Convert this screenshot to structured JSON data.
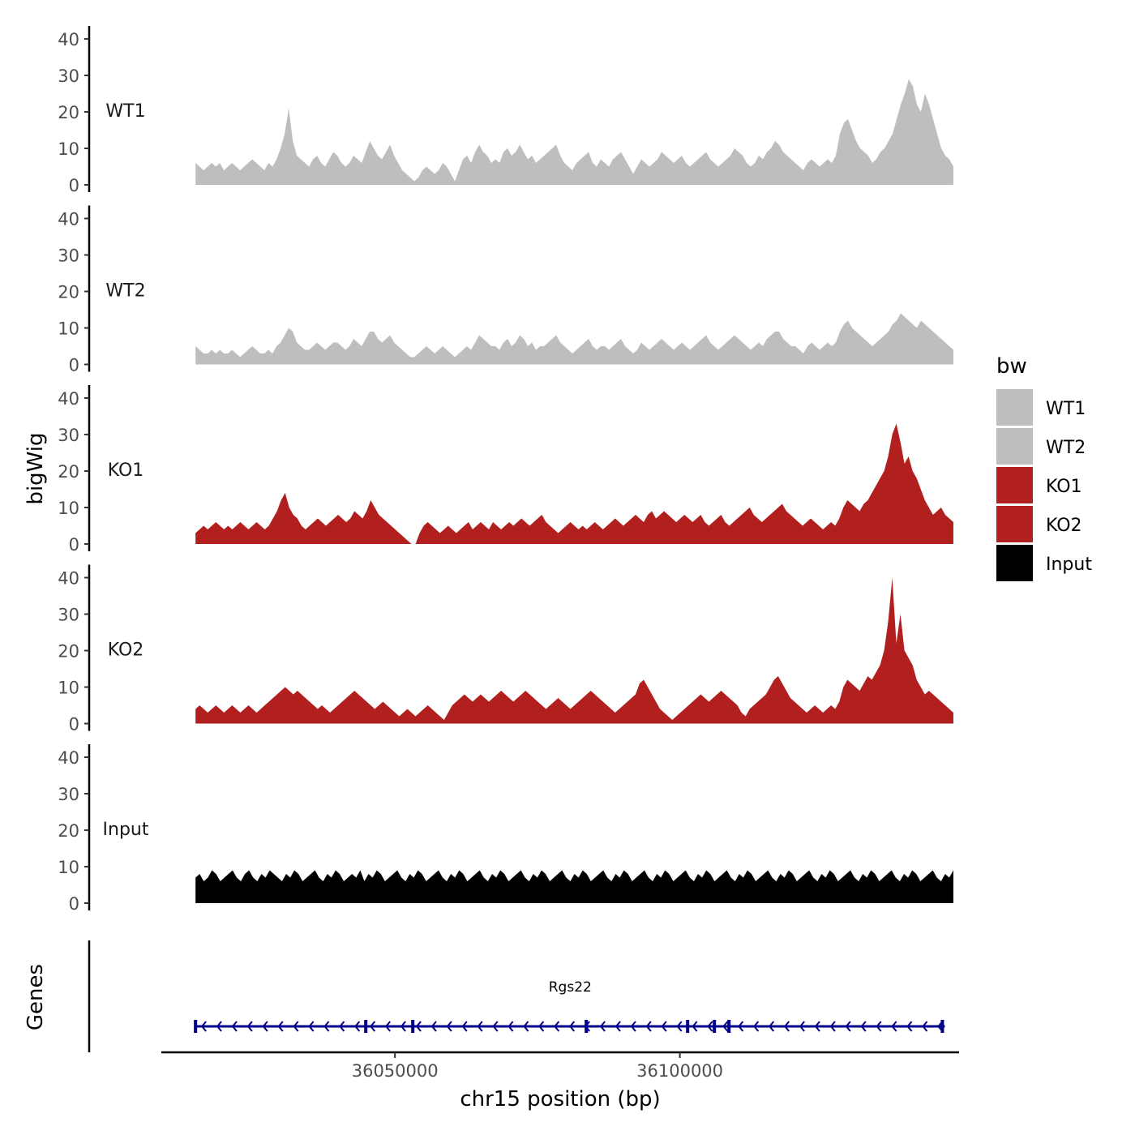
{
  "chart_data": {
    "type": "area",
    "ylabel": "bigWig",
    "xlabel": "chr15 position (bp)",
    "xlim": [
      36009000,
      36149000
    ],
    "x_ticks": [
      36050000,
      36100000
    ],
    "x_tick_labels": [
      "36050000",
      "36100000"
    ],
    "ylim": [
      0,
      42
    ],
    "y_ticks": [
      0,
      10,
      20,
      30,
      40
    ],
    "y_tick_labels": [
      "0",
      "10",
      "20",
      "30",
      "40"
    ],
    "legend": {
      "title": "bw",
      "position": "right",
      "entries": [
        {
          "label": "WT1",
          "color": "#bebebe"
        },
        {
          "label": "WT2",
          "color": "#bebebe"
        },
        {
          "label": "KO1",
          "color": "#b21f1f"
        },
        {
          "label": "KO2",
          "color": "#b21f1f"
        },
        {
          "label": "Input",
          "color": "#000000"
        }
      ]
    },
    "x_start": 36015000,
    "x_end": 36148000,
    "series": [
      {
        "name": "WT1",
        "color": "#bebebe",
        "values": [
          6,
          5,
          4,
          5,
          6,
          5,
          6,
          4,
          5,
          6,
          5,
          4,
          5,
          6,
          7,
          6,
          5,
          4,
          6,
          5,
          7,
          10,
          14,
          21,
          12,
          8,
          7,
          6,
          5,
          7,
          8,
          6,
          5,
          7,
          9,
          8,
          6,
          5,
          6,
          8,
          7,
          6,
          9,
          12,
          10,
          8,
          7,
          9,
          11,
          8,
          6,
          4,
          3,
          2,
          1,
          2,
          4,
          5,
          4,
          3,
          4,
          6,
          5,
          3,
          1,
          4,
          7,
          8,
          6,
          9,
          11,
          9,
          8,
          6,
          7,
          6,
          9,
          10,
          8,
          9,
          11,
          9,
          7,
          8,
          6,
          7,
          8,
          9,
          10,
          11,
          8,
          6,
          5,
          4,
          6,
          7,
          8,
          9,
          6,
          5,
          7,
          6,
          5,
          7,
          8,
          9,
          7,
          5,
          3,
          5,
          7,
          6,
          5,
          6,
          7,
          9,
          8,
          7,
          6,
          7,
          8,
          6,
          5,
          6,
          7,
          8,
          9,
          7,
          6,
          5,
          6,
          7,
          8,
          10,
          9,
          8,
          6,
          5,
          6,
          8,
          7,
          9,
          10,
          12,
          11,
          9,
          8,
          7,
          6,
          5,
          4,
          6,
          7,
          6,
          5,
          6,
          7,
          6,
          8,
          14,
          17,
          18,
          15,
          12,
          10,
          9,
          8,
          6,
          7,
          9,
          10,
          12,
          14,
          18,
          22,
          25,
          29,
          27,
          22,
          20,
          25,
          22,
          18,
          14,
          10,
          8,
          7,
          5
        ]
      },
      {
        "name": "WT2",
        "color": "#bebebe",
        "values": [
          5,
          4,
          3,
          3,
          4,
          3,
          4,
          3,
          3,
          4,
          3,
          2,
          3,
          4,
          5,
          4,
          3,
          3,
          4,
          3,
          5,
          6,
          8,
          10,
          9,
          6,
          5,
          4,
          4,
          5,
          6,
          5,
          4,
          5,
          6,
          6,
          5,
          4,
          5,
          7,
          6,
          5,
          7,
          9,
          9,
          7,
          6,
          7,
          8,
          6,
          5,
          4,
          3,
          2,
          2,
          3,
          4,
          5,
          4,
          3,
          4,
          5,
          4,
          3,
          2,
          3,
          4,
          5,
          4,
          6,
          8,
          7,
          6,
          5,
          5,
          4,
          6,
          7,
          5,
          6,
          8,
          7,
          5,
          6,
          4,
          5,
          5,
          6,
          7,
          8,
          6,
          5,
          4,
          3,
          4,
          5,
          6,
          7,
          5,
          4,
          5,
          5,
          4,
          5,
          6,
          7,
          5,
          4,
          3,
          4,
          6,
          5,
          4,
          5,
          6,
          7,
          6,
          5,
          4,
          5,
          6,
          5,
          4,
          5,
          6,
          7,
          8,
          6,
          5,
          4,
          5,
          6,
          7,
          8,
          7,
          6,
          5,
          4,
          5,
          6,
          5,
          7,
          8,
          9,
          9,
          7,
          6,
          5,
          5,
          4,
          3,
          5,
          6,
          5,
          4,
          5,
          6,
          5,
          6,
          9,
          11,
          12,
          10,
          9,
          8,
          7,
          6,
          5,
          6,
          7,
          8,
          9,
          11,
          12,
          14,
          13,
          12,
          11,
          10,
          12,
          11,
          10,
          9,
          8,
          7,
          6,
          5,
          4
        ]
      },
      {
        "name": "KO1",
        "color": "#b21f1f",
        "values": [
          3,
          4,
          5,
          4,
          5,
          6,
          5,
          4,
          5,
          4,
          5,
          6,
          5,
          4,
          5,
          6,
          5,
          4,
          5,
          7,
          9,
          12,
          14,
          10,
          8,
          7,
          5,
          4,
          5,
          6,
          7,
          6,
          5,
          6,
          7,
          8,
          7,
          6,
          7,
          9,
          8,
          7,
          9,
          12,
          10,
          8,
          7,
          6,
          5,
          4,
          3,
          2,
          1,
          0,
          0,
          3,
          5,
          6,
          5,
          4,
          3,
          4,
          5,
          4,
          3,
          4,
          5,
          6,
          4,
          5,
          6,
          5,
          4,
          6,
          5,
          4,
          5,
          6,
          5,
          6,
          7,
          6,
          5,
          6,
          7,
          8,
          6,
          5,
          4,
          3,
          4,
          5,
          6,
          5,
          4,
          5,
          4,
          5,
          6,
          5,
          4,
          5,
          6,
          7,
          6,
          5,
          6,
          7,
          8,
          7,
          6,
          8,
          9,
          7,
          8,
          9,
          8,
          7,
          6,
          7,
          8,
          7,
          6,
          7,
          8,
          6,
          5,
          6,
          7,
          8,
          6,
          5,
          6,
          7,
          8,
          9,
          10,
          8,
          7,
          6,
          7,
          8,
          9,
          10,
          11,
          9,
          8,
          7,
          6,
          5,
          6,
          7,
          6,
          5,
          4,
          5,
          6,
          5,
          7,
          10,
          12,
          11,
          10,
          9,
          11,
          12,
          14,
          16,
          18,
          20,
          24,
          30,
          33,
          28,
          22,
          24,
          20,
          18,
          15,
          12,
          10,
          8,
          9,
          10,
          8,
          7,
          6
        ]
      },
      {
        "name": "KO2",
        "color": "#b21f1f",
        "values": [
          4,
          5,
          4,
          3,
          4,
          5,
          4,
          3,
          4,
          5,
          4,
          3,
          4,
          5,
          4,
          3,
          4,
          5,
          6,
          7,
          8,
          9,
          10,
          9,
          8,
          9,
          8,
          7,
          6,
          5,
          4,
          5,
          4,
          3,
          4,
          5,
          6,
          7,
          8,
          9,
          8,
          7,
          6,
          5,
          4,
          5,
          6,
          5,
          4,
          3,
          2,
          3,
          4,
          3,
          2,
          3,
          4,
          5,
          4,
          3,
          2,
          1,
          3,
          5,
          6,
          7,
          8,
          7,
          6,
          7,
          8,
          7,
          6,
          7,
          8,
          9,
          8,
          7,
          6,
          7,
          8,
          9,
          8,
          7,
          6,
          5,
          4,
          5,
          6,
          7,
          6,
          5,
          4,
          5,
          6,
          7,
          8,
          9,
          8,
          7,
          6,
          5,
          4,
          3,
          4,
          5,
          6,
          7,
          8,
          11,
          12,
          10,
          8,
          6,
          4,
          3,
          2,
          1,
          2,
          3,
          4,
          5,
          6,
          7,
          8,
          7,
          6,
          7,
          8,
          9,
          8,
          7,
          6,
          5,
          3,
          2,
          4,
          5,
          6,
          7,
          8,
          10,
          12,
          13,
          11,
          9,
          7,
          6,
          5,
          4,
          3,
          4,
          5,
          4,
          3,
          4,
          5,
          4,
          6,
          10,
          12,
          11,
          10,
          9,
          11,
          13,
          12,
          14,
          16,
          20,
          28,
          40,
          22,
          30,
          20,
          18,
          16,
          12,
          10,
          8,
          9,
          8,
          7,
          6,
          5,
          4,
          3
        ]
      },
      {
        "name": "Input",
        "color": "#000000",
        "values": [
          7,
          8,
          6,
          7,
          9,
          8,
          6,
          7,
          8,
          9,
          7,
          6,
          8,
          9,
          7,
          6,
          8,
          7,
          9,
          8,
          7,
          6,
          8,
          7,
          9,
          8,
          6,
          7,
          8,
          9,
          7,
          6,
          8,
          7,
          9,
          8,
          6,
          7,
          8,
          7,
          9,
          6,
          8,
          7,
          9,
          8,
          6,
          7,
          8,
          9,
          7,
          6,
          8,
          7,
          9,
          8,
          6,
          7,
          8,
          9,
          7,
          6,
          8,
          7,
          9,
          8,
          6,
          7,
          8,
          9,
          7,
          6,
          8,
          7,
          9,
          8,
          6,
          7,
          8,
          9,
          7,
          6,
          8,
          7,
          9,
          8,
          6,
          7,
          8,
          9,
          7,
          6,
          8,
          7,
          9,
          8,
          6,
          7,
          8,
          9,
          7,
          6,
          8,
          7,
          9,
          8,
          6,
          7,
          8,
          9,
          7,
          6,
          8,
          7,
          9,
          8,
          6,
          7,
          8,
          9,
          7,
          6,
          8,
          7,
          9,
          8,
          6,
          7,
          8,
          9,
          7,
          6,
          8,
          7,
          9,
          8,
          6,
          7,
          8,
          9,
          7,
          6,
          8,
          7,
          9,
          8,
          6,
          7,
          8,
          9,
          7,
          6,
          8,
          7,
          9,
          8,
          6,
          7,
          8,
          9,
          7,
          6,
          8,
          7,
          9,
          8,
          6,
          7,
          8,
          9,
          7,
          6,
          8,
          7,
          9,
          8,
          6,
          7,
          8,
          9,
          7,
          6,
          8,
          7,
          9
        ]
      }
    ],
    "genes_track": {
      "label": "Genes",
      "genes": [
        {
          "name": "Rgs22",
          "start": 36015000,
          "end": 36146500,
          "strand": "-",
          "color": "#00008b"
        }
      ]
    }
  }
}
